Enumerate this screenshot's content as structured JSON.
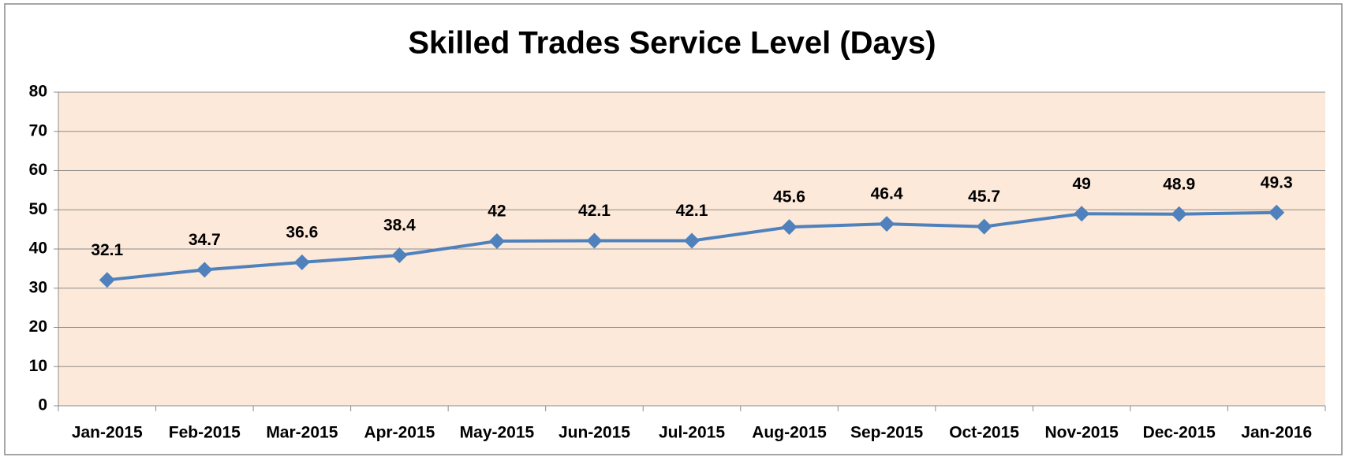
{
  "chart_data": {
    "type": "line",
    "title": "Skilled Trades Service Level (Days)",
    "categories": [
      "Jan-2015",
      "Feb-2015",
      "Mar-2015",
      "Apr-2015",
      "May-2015",
      "Jun-2015",
      "Jul-2015",
      "Aug-2015",
      "Sep-2015",
      "Oct-2015",
      "Nov-2015",
      "Dec-2015",
      "Jan-2016"
    ],
    "values": [
      32.1,
      34.7,
      36.6,
      38.4,
      42,
      42.1,
      42.1,
      45.6,
      46.4,
      45.7,
      49,
      48.9,
      49.3
    ],
    "color": "#4f81bd",
    "ylim": [
      0,
      80
    ],
    "yticks": [
      0,
      10,
      20,
      30,
      40,
      50,
      60,
      70,
      80
    ],
    "grid": true
  }
}
